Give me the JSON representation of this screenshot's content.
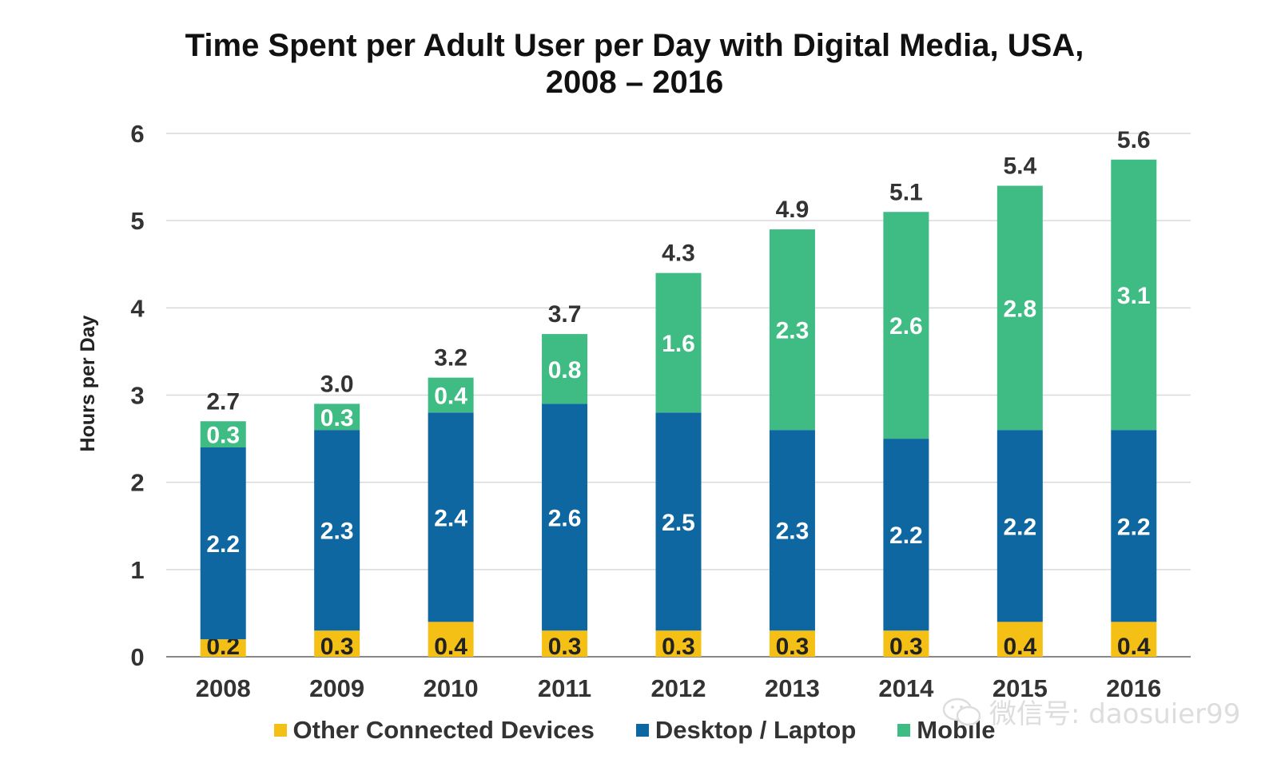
{
  "title_line1": "Time Spent per Adult User per Day with Digital Media, USA,",
  "title_line2": "2008 – 2016",
  "watermark": "微信号: daosuier99",
  "chart_data": {
    "type": "bar",
    "stacked": true,
    "title": "Time Spent per Adult User per Day with Digital Media, USA, 2008 – 2016",
    "xlabel": "",
    "ylabel": "Hours per Day",
    "ylim": [
      0,
      6
    ],
    "yticks": [
      "0",
      "1",
      "2",
      "3",
      "4",
      "5",
      "6"
    ],
    "grid": true,
    "legend_position": "bottom",
    "categories": [
      "2008",
      "2009",
      "2010",
      "2011",
      "2012",
      "2013",
      "2014",
      "2015",
      "2016"
    ],
    "totals": [
      "2.7",
      "3.0",
      "3.2",
      "3.7",
      "4.3",
      "4.9",
      "5.1",
      "5.4",
      "5.6"
    ],
    "series": [
      {
        "name": "Other Connected Devices",
        "color": "#f5c016",
        "values": [
          0.2,
          0.3,
          0.4,
          0.3,
          0.3,
          0.3,
          0.3,
          0.4,
          0.4
        ],
        "labels": [
          "0.2",
          "0.3",
          "0.4",
          "0.3",
          "0.3",
          "0.3",
          "0.3",
          "0.4",
          "0.4"
        ]
      },
      {
        "name": "Desktop / Laptop",
        "color": "#0e67a0",
        "values": [
          2.2,
          2.3,
          2.4,
          2.6,
          2.5,
          2.3,
          2.2,
          2.2,
          2.2
        ],
        "labels": [
          "2.2",
          "2.3",
          "2.4",
          "2.6",
          "2.5",
          "2.3",
          "2.2",
          "2.2",
          "2.2"
        ]
      },
      {
        "name": "Mobile",
        "color": "#3fbc83",
        "values": [
          0.3,
          0.3,
          0.4,
          0.8,
          1.6,
          2.3,
          2.6,
          2.8,
          3.1
        ],
        "labels": [
          "0.3",
          "0.3",
          "0.4",
          "0.8",
          "1.6",
          "2.3",
          "2.6",
          "2.8",
          "3.1"
        ]
      }
    ]
  }
}
